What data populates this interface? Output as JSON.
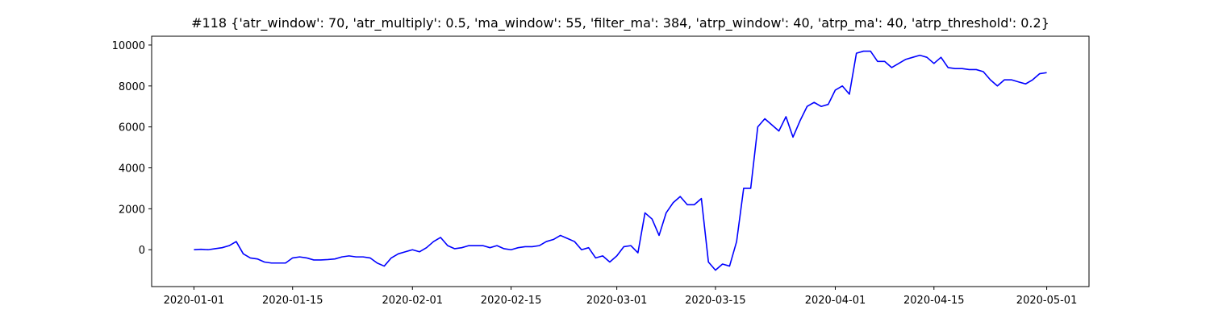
{
  "chart_data": {
    "type": "line",
    "title": "#118 {'atr_window': 70, 'atr_multiply': 0.5, 'ma_window': 55, 'filter_ma': 384, 'atrp_window': 40, 'atrp_ma': 40, 'atrp_threshold': 0.2}",
    "x": [
      "2020-01-01",
      "2020-01-02",
      "2020-01-03",
      "2020-01-04",
      "2020-01-05",
      "2020-01-06",
      "2020-01-07",
      "2020-01-08",
      "2020-01-09",
      "2020-01-10",
      "2020-01-11",
      "2020-01-12",
      "2020-01-13",
      "2020-01-14",
      "2020-01-15",
      "2020-01-16",
      "2020-01-17",
      "2020-01-18",
      "2020-01-19",
      "2020-01-20",
      "2020-01-21",
      "2020-01-22",
      "2020-01-23",
      "2020-01-24",
      "2020-01-25",
      "2020-01-26",
      "2020-01-27",
      "2020-01-28",
      "2020-01-29",
      "2020-01-30",
      "2020-01-31",
      "2020-02-01",
      "2020-02-02",
      "2020-02-03",
      "2020-02-04",
      "2020-02-05",
      "2020-02-06",
      "2020-02-07",
      "2020-02-08",
      "2020-02-09",
      "2020-02-10",
      "2020-02-11",
      "2020-02-12",
      "2020-02-13",
      "2020-02-14",
      "2020-02-15",
      "2020-02-16",
      "2020-02-17",
      "2020-02-18",
      "2020-02-19",
      "2020-02-20",
      "2020-02-21",
      "2020-02-22",
      "2020-02-23",
      "2020-02-24",
      "2020-02-25",
      "2020-02-26",
      "2020-02-27",
      "2020-02-28",
      "2020-02-29",
      "2020-03-01",
      "2020-03-02",
      "2020-03-03",
      "2020-03-04",
      "2020-03-05",
      "2020-03-06",
      "2020-03-07",
      "2020-03-08",
      "2020-03-09",
      "2020-03-10",
      "2020-03-11",
      "2020-03-12",
      "2020-03-13",
      "2020-03-14",
      "2020-03-15",
      "2020-03-16",
      "2020-03-17",
      "2020-03-18",
      "2020-03-19",
      "2020-03-20",
      "2020-03-21",
      "2020-03-22",
      "2020-03-23",
      "2020-03-24",
      "2020-03-25",
      "2020-03-26",
      "2020-03-27",
      "2020-03-28",
      "2020-03-29",
      "2020-03-30",
      "2020-03-31",
      "2020-04-01",
      "2020-04-02",
      "2020-04-03",
      "2020-04-04",
      "2020-04-05",
      "2020-04-06",
      "2020-04-07",
      "2020-04-08",
      "2020-04-09",
      "2020-04-10",
      "2020-04-11",
      "2020-04-12",
      "2020-04-13",
      "2020-04-14",
      "2020-04-15",
      "2020-04-16",
      "2020-04-17",
      "2020-04-18",
      "2020-04-19",
      "2020-04-20",
      "2020-04-21",
      "2020-04-22",
      "2020-04-23",
      "2020-04-24",
      "2020-04-25",
      "2020-04-26",
      "2020-04-27",
      "2020-04-28",
      "2020-04-29",
      "2020-04-30",
      "2020-05-01"
    ],
    "values": [
      0,
      20,
      0,
      50,
      100,
      200,
      400,
      -200,
      -400,
      -450,
      -600,
      -650,
      -650,
      -650,
      -400,
      -350,
      -400,
      -500,
      -500,
      -480,
      -450,
      -350,
      -300,
      -350,
      -350,
      -400,
      -650,
      -800,
      -400,
      -200,
      -100,
      0,
      -100,
      100,
      400,
      600,
      200,
      50,
      100,
      200,
      200,
      200,
      100,
      200,
      50,
      0,
      100,
      150,
      150,
      200,
      400,
      500,
      700,
      550,
      400,
      0,
      100,
      -400,
      -300,
      -600,
      -300,
      150,
      200,
      -150,
      1800,
      1500,
      700,
      1800,
      2300,
      2600,
      2200,
      2200,
      2500,
      -600,
      -1000,
      -700,
      -800,
      400,
      3000,
      3000,
      6000,
      6400,
      6100,
      5800,
      6500,
      5500,
      6300,
      7000,
      7200,
      7000,
      7100,
      7800,
      8000,
      7600,
      9600,
      9700,
      9700,
      9200,
      9200,
      8900,
      9100,
      9300,
      9400,
      9500,
      9400,
      9100,
      9400,
      8900,
      8850,
      8850,
      8800,
      8800,
      8700,
      8300,
      8000,
      8300,
      8300,
      8200,
      8100,
      8300,
      8600,
      8650
    ],
    "color": "#0000ff",
    "xlim": [
      "2019-12-26",
      "2020-05-07"
    ],
    "xticks": [
      "2020-01-01",
      "2020-01-15",
      "2020-02-01",
      "2020-02-15",
      "2020-03-01",
      "2020-03-15",
      "2020-04-01",
      "2020-04-15",
      "2020-05-01"
    ],
    "ylim": [
      -1800,
      10430
    ],
    "yticks": [
      0,
      2000,
      4000,
      6000,
      8000,
      10000
    ],
    "grid": false
  }
}
